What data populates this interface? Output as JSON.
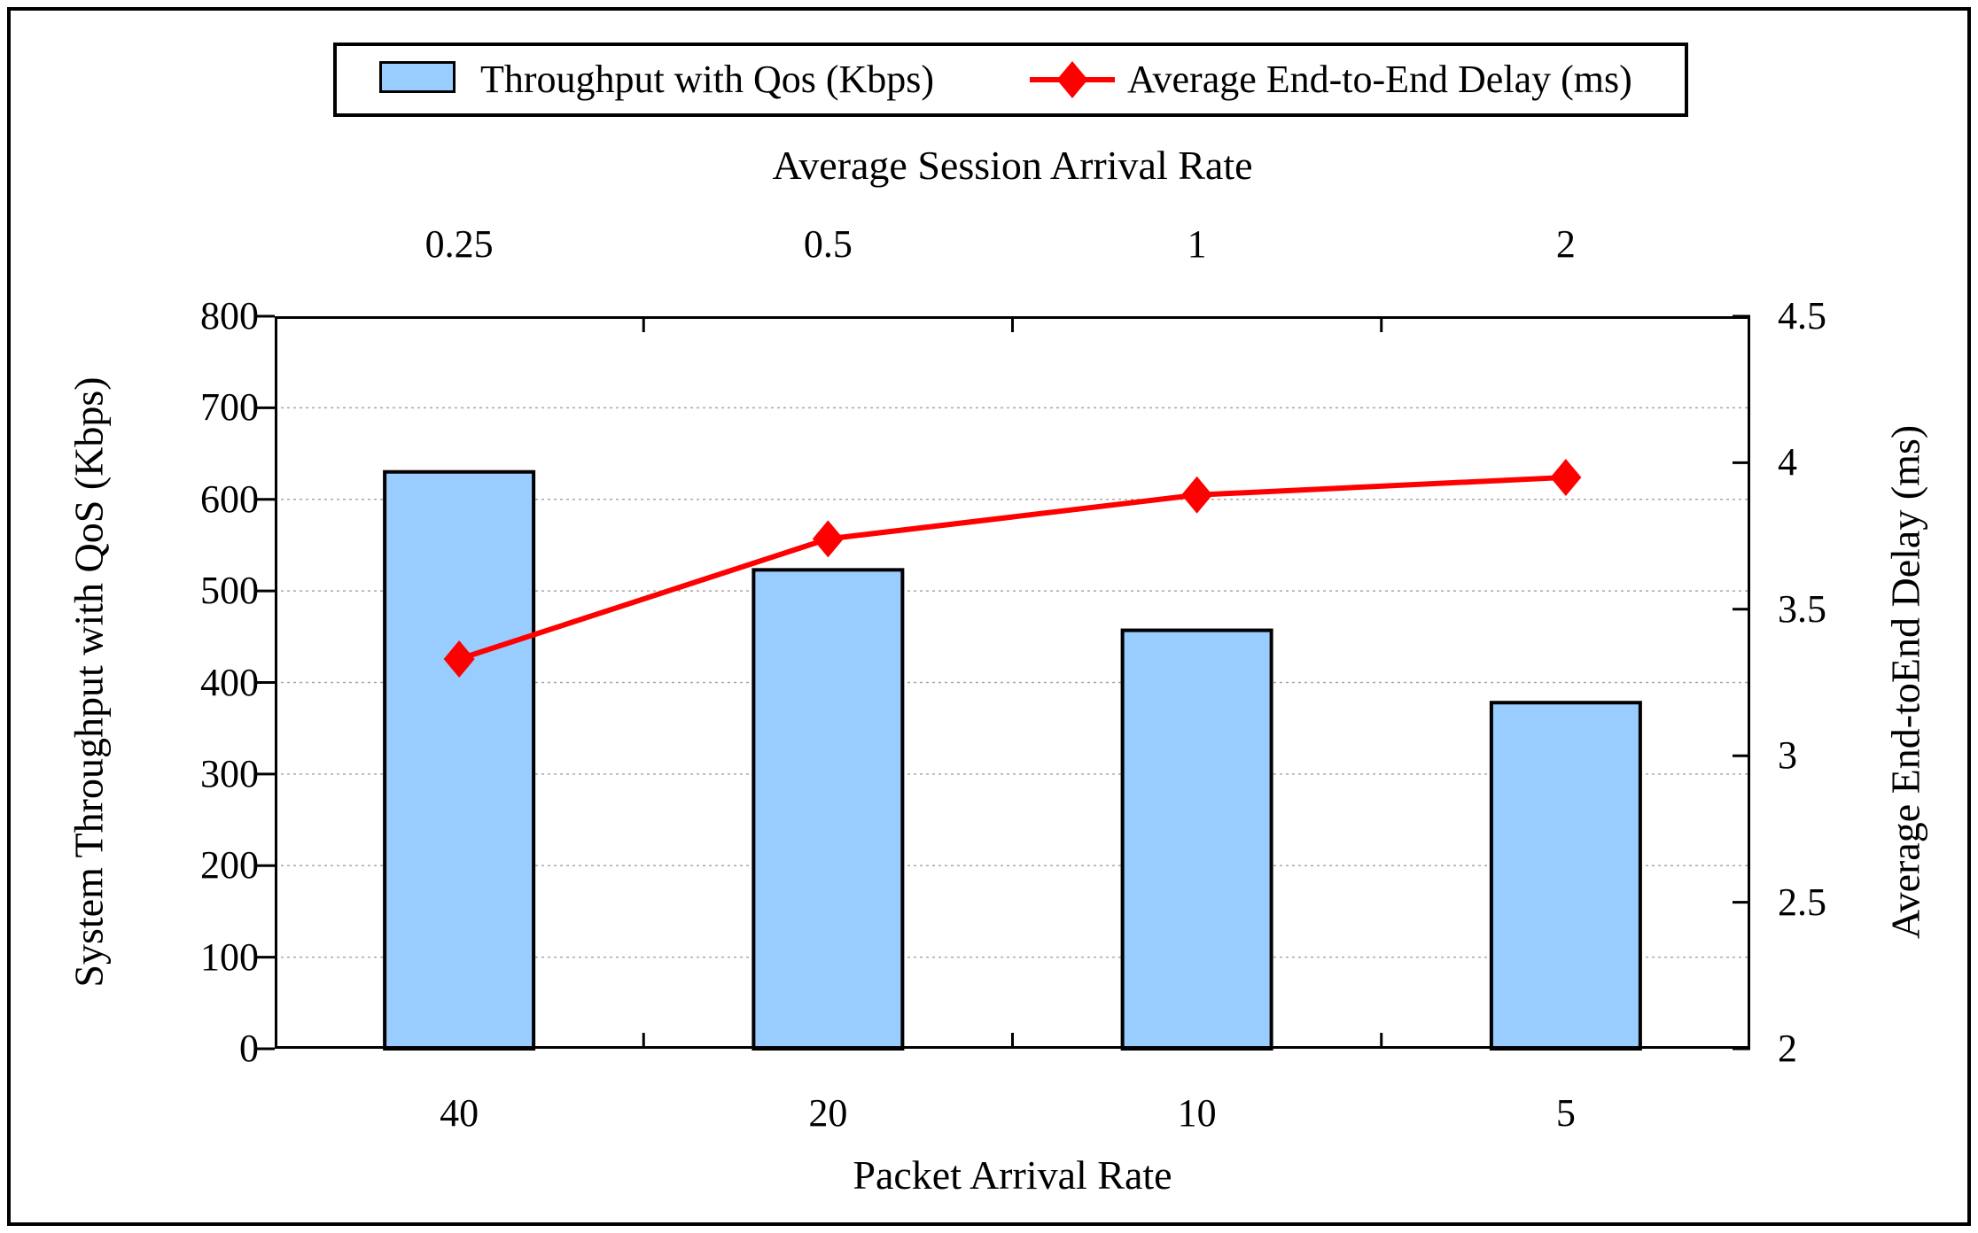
{
  "legend": {
    "items": [
      {
        "label": "Throughput with Qos (Kbps)",
        "swatch": "bar",
        "color": "#99CCFF"
      },
      {
        "label": "Average End-to-End Delay (ms)",
        "swatch": "line-diamond",
        "color": "#FF0000"
      }
    ]
  },
  "axes": {
    "top": {
      "title": "Average Session Arrival Rate",
      "tick_labels": [
        "0.25",
        "0.5",
        "1",
        "2"
      ]
    },
    "bottom": {
      "title": "Packet Arrival Rate",
      "tick_labels": [
        "40",
        "20",
        "10",
        "5"
      ]
    },
    "left": {
      "title": "System Throughput with QoS (Kbps)",
      "tick_labels": [
        "800",
        "700",
        "600",
        "500",
        "400",
        "300",
        "200",
        "100",
        "0"
      ]
    },
    "right": {
      "title": "Average End-toEnd Delay (ms)",
      "tick_labels": [
        "4.5",
        "4",
        "3.5",
        "3",
        "2.5",
        "2"
      ]
    }
  },
  "colors": {
    "bar_fill": "#99CCFF",
    "bar_border": "#000000",
    "line": "#FF0000",
    "grid": "#A8A8A8",
    "axis": "#000000",
    "background": "#FFFFFF"
  },
  "chart_data": {
    "type": "combo",
    "categories": [
      "40",
      "20",
      "10",
      "5"
    ],
    "secondary_categories": [
      "0.25",
      "0.5",
      "1",
      "2"
    ],
    "series": [
      {
        "name": "Throughput with Qos (Kbps)",
        "type": "bar",
        "yaxis": "left",
        "values": [
          630,
          523,
          457,
          378
        ],
        "color": "#99CCFF"
      },
      {
        "name": "Average End-to-End Delay (ms)",
        "type": "line",
        "yaxis": "right",
        "values": [
          3.33,
          3.74,
          3.89,
          3.95
        ],
        "color": "#FF0000",
        "marker": "diamond"
      }
    ],
    "title": "",
    "xlabel": "Packet Arrival Rate",
    "x2label": "Average Session Arrival Rate",
    "ylabel": "System Throughput with QoS (Kbps)",
    "y2label": "Average End-toEnd Delay (ms)",
    "ylim": [
      0,
      800
    ],
    "ystep": 100,
    "y2lim": [
      2,
      4.5
    ],
    "y2step": 0.5,
    "grid": "horizontal-dashed",
    "legend_position": "top"
  }
}
